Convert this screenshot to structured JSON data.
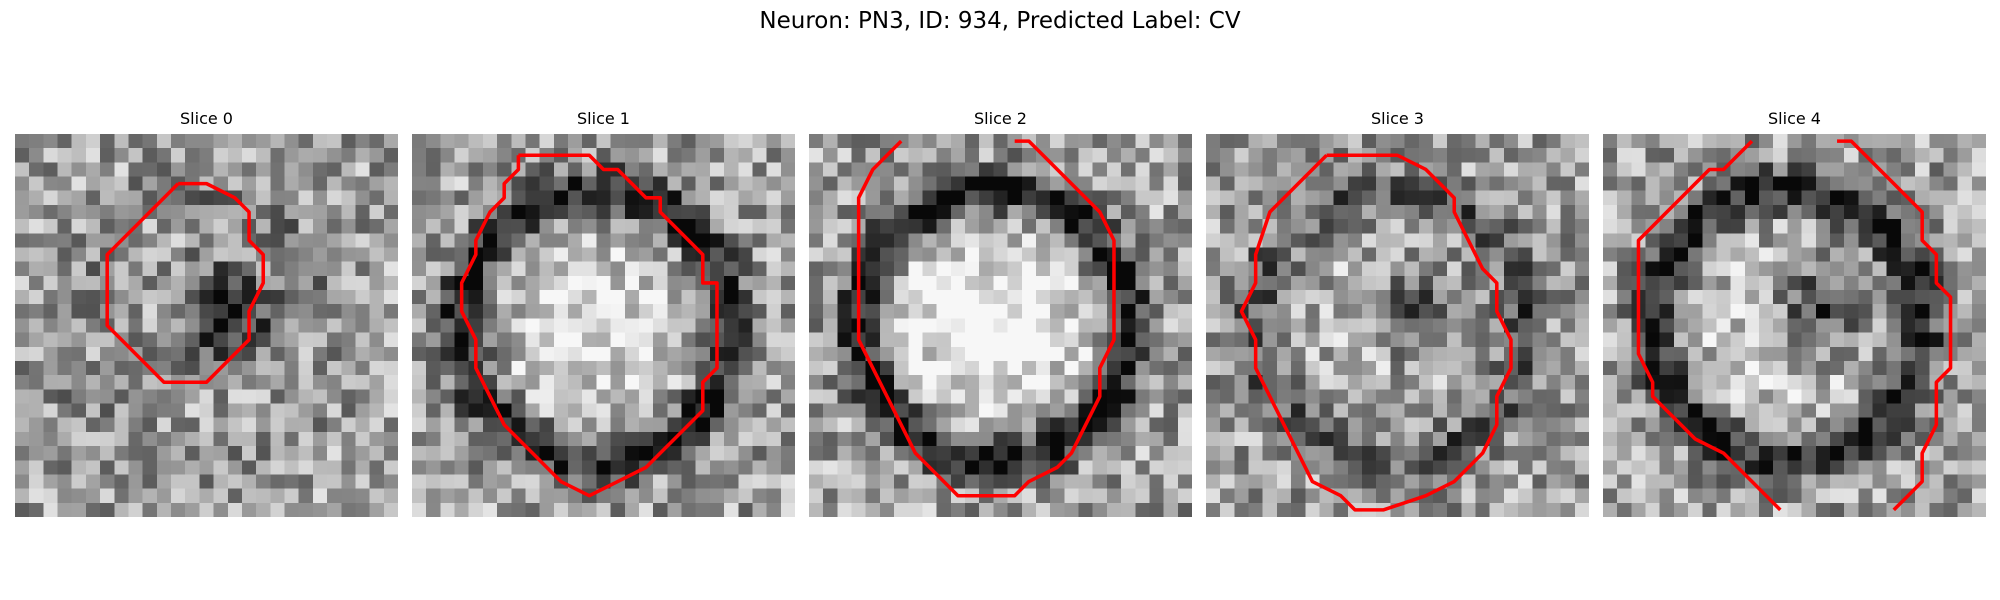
{
  "figure": {
    "title": "Neuron: PN3, ID: 934, Predicted Label: CV",
    "slices": [
      {
        "title": "Slice 0",
        "seed": 11,
        "ring_strength": 0.1,
        "dark_blob": 0.55,
        "bright_center": 0.0,
        "contour": [
          [
            11,
            3
          ],
          [
            13,
            3
          ],
          [
            15,
            4
          ],
          [
            16,
            5
          ],
          [
            16,
            7
          ],
          [
            17,
            8
          ],
          [
            17,
            10
          ],
          [
            16,
            12
          ],
          [
            16,
            14
          ],
          [
            14,
            16
          ],
          [
            13,
            17
          ],
          [
            10,
            17
          ],
          [
            8,
            15
          ],
          [
            6,
            13
          ],
          [
            6,
            9
          ],
          [
            6,
            8
          ],
          [
            8,
            6
          ],
          [
            9,
            5
          ],
          [
            10,
            4
          ],
          [
            11,
            3
          ]
        ]
      },
      {
        "title": "Slice 1",
        "seed": 23,
        "ring_strength": 0.55,
        "dark_blob": 0.0,
        "bright_center": 0.3,
        "contour": [
          [
            7,
            1
          ],
          [
            12,
            1
          ],
          [
            13,
            2
          ],
          [
            14,
            2
          ],
          [
            16,
            4
          ],
          [
            17,
            4
          ],
          [
            17,
            5
          ],
          [
            19,
            7
          ],
          [
            20,
            8
          ],
          [
            20,
            10
          ],
          [
            21,
            10
          ],
          [
            21,
            16
          ],
          [
            20,
            17
          ],
          [
            20,
            19
          ],
          [
            18,
            21
          ],
          [
            17,
            22
          ],
          [
            16,
            23
          ],
          [
            14,
            24
          ],
          [
            12,
            25
          ],
          [
            10,
            24
          ],
          [
            9,
            23
          ],
          [
            8,
            22
          ],
          [
            7,
            21
          ],
          [
            6,
            20
          ],
          [
            5,
            18
          ],
          [
            4,
            16
          ],
          [
            4,
            14
          ],
          [
            3,
            12
          ],
          [
            3,
            10
          ],
          [
            4,
            8
          ],
          [
            4,
            7
          ],
          [
            5,
            5
          ],
          [
            6,
            4
          ],
          [
            6,
            3
          ],
          [
            7,
            2
          ],
          [
            7,
            1
          ]
        ]
      },
      {
        "title": "Slice 2",
        "seed": 37,
        "ring_strength": 0.6,
        "dark_blob": 0.0,
        "bright_center": 0.45,
        "contour": [
          [
            6,
            0
          ],
          [
            4,
            2
          ],
          [
            3,
            4
          ],
          [
            3,
            6
          ],
          [
            3,
            14
          ],
          [
            4,
            16
          ],
          [
            5,
            18
          ],
          [
            6,
            20
          ],
          [
            7,
            22
          ],
          [
            9,
            24
          ],
          [
            10,
            25
          ],
          [
            14,
            25
          ],
          [
            15,
            24
          ],
          [
            17,
            23
          ],
          [
            18,
            22
          ],
          [
            19,
            20
          ],
          [
            20,
            18
          ],
          [
            20,
            16
          ],
          [
            21,
            14
          ],
          [
            21,
            7
          ],
          [
            20,
            5
          ],
          [
            18,
            3
          ],
          [
            16,
            1
          ],
          [
            15,
            0
          ],
          [
            14,
            0
          ]
        ]
      },
      {
        "title": "Slice 3",
        "seed": 53,
        "ring_strength": 0.3,
        "dark_blob": 0.4,
        "bright_center": 0.1,
        "contour": [
          [
            8,
            1
          ],
          [
            13,
            1
          ],
          [
            15,
            2
          ],
          [
            16,
            3
          ],
          [
            17,
            4
          ],
          [
            17,
            5
          ],
          [
            18,
            7
          ],
          [
            19,
            9
          ],
          [
            20,
            10
          ],
          [
            20,
            12
          ],
          [
            21,
            14
          ],
          [
            21,
            16
          ],
          [
            20,
            18
          ],
          [
            20,
            20
          ],
          [
            19,
            22
          ],
          [
            18,
            23
          ],
          [
            17,
            24
          ],
          [
            15,
            25
          ],
          [
            12,
            26
          ],
          [
            10,
            26
          ],
          [
            9,
            25
          ],
          [
            7,
            24
          ],
          [
            6,
            22
          ],
          [
            5,
            20
          ],
          [
            4,
            18
          ],
          [
            3,
            16
          ],
          [
            3,
            14
          ],
          [
            2,
            12
          ],
          [
            3,
            10
          ],
          [
            3,
            8
          ],
          [
            4,
            5
          ],
          [
            5,
            4
          ],
          [
            6,
            3
          ],
          [
            7,
            2
          ],
          [
            8,
            1
          ]
        ]
      },
      {
        "title": "Slice 4",
        "seed": 71,
        "ring_strength": 0.5,
        "dark_blob": 0.5,
        "bright_center": 0.2,
        "contour": [
          [
            [
              10,
              0
            ],
            [
              9,
              1
            ],
            [
              8,
              2
            ],
            [
              7,
              2
            ],
            [
              6,
              3
            ],
            [
              5,
              4
            ],
            [
              4,
              5
            ],
            [
              3,
              6
            ],
            [
              2,
              7
            ],
            [
              2,
              15
            ],
            [
              3,
              17
            ],
            [
              3,
              18
            ],
            [
              4,
              19
            ],
            [
              5,
              20
            ],
            [
              6,
              21
            ],
            [
              8,
              22
            ],
            [
              9,
              23
            ],
            [
              10,
              24
            ],
            [
              11,
              25
            ],
            [
              12,
              26
            ]
          ],
          [
            [
              16,
              0
            ],
            [
              17,
              0
            ],
            [
              18,
              1
            ],
            [
              19,
              2
            ],
            [
              20,
              3
            ],
            [
              21,
              4
            ],
            [
              22,
              5
            ],
            [
              22,
              7
            ],
            [
              23,
              8
            ],
            [
              23,
              10
            ],
            [
              24,
              11
            ],
            [
              24,
              16
            ],
            [
              23,
              17
            ],
            [
              23,
              20
            ],
            [
              22,
              22
            ],
            [
              22,
              24
            ],
            [
              21,
              25
            ],
            [
              20,
              26
            ]
          ]
        ]
      }
    ]
  }
}
